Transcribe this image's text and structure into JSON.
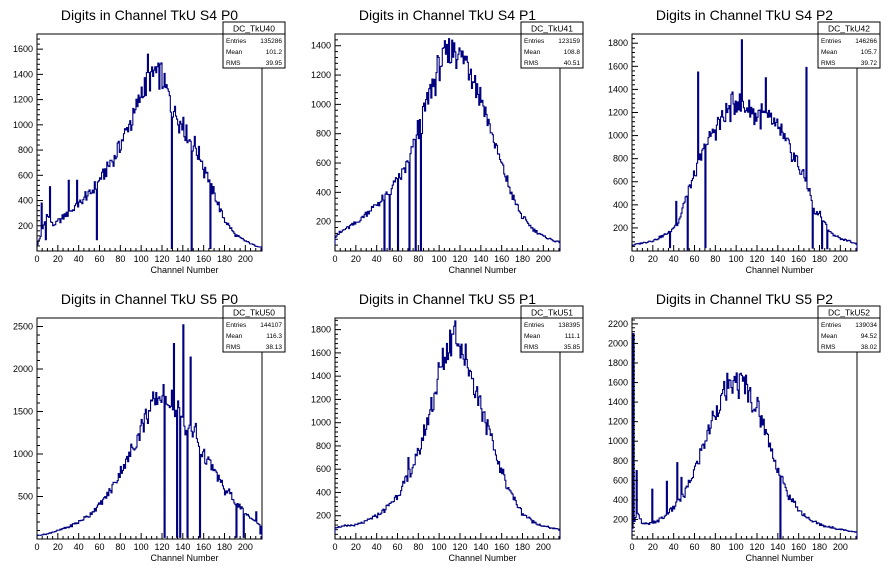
{
  "chart_data": [
    {
      "type": "bar",
      "title": "Digits in Channel TkU S4 P0",
      "xlabel": "Channel Number",
      "ylabel": "",
      "xlim": [
        0,
        216
      ],
      "ylim": [
        0,
        1720
      ],
      "xticks": [
        0,
        20,
        40,
        60,
        80,
        100,
        120,
        140,
        160,
        180,
        200
      ],
      "yticks": [
        200,
        400,
        600,
        800,
        1000,
        1200,
        1400,
        1600
      ],
      "color": "#000080",
      "stats": {
        "name": "DC_TkU40",
        "entries_label": "Entries",
        "entries": "135286",
        "mean_label": "Mean",
        "mean": "101.2",
        "rms_label": "RMS",
        "rms": "39.95"
      },
      "knots": [
        [
          0,
          40
        ],
        [
          5,
          150
        ],
        [
          10,
          300
        ],
        [
          15,
          200
        ],
        [
          20,
          230
        ],
        [
          30,
          300
        ],
        [
          40,
          370
        ],
        [
          50,
          440
        ],
        [
          60,
          560
        ],
        [
          70,
          680
        ],
        [
          80,
          840
        ],
        [
          90,
          1020
        ],
        [
          100,
          1250
        ],
        [
          110,
          1400
        ],
        [
          120,
          1380
        ],
        [
          130,
          1120
        ],
        [
          140,
          1000
        ],
        [
          150,
          850
        ],
        [
          160,
          700
        ],
        [
          170,
          450
        ],
        [
          180,
          250
        ],
        [
          190,
          130
        ],
        [
          200,
          80
        ],
        [
          210,
          40
        ],
        [
          216,
          30
        ]
      ],
      "spikes": [
        [
          4,
          380
        ],
        [
          8,
          90
        ],
        [
          12,
          510
        ],
        [
          30,
          560
        ],
        [
          38,
          560
        ],
        [
          46,
          470
        ],
        [
          57,
          90
        ],
        [
          106,
          1560
        ],
        [
          113,
          1460
        ],
        [
          129,
          20
        ],
        [
          140,
          1060
        ],
        [
          148,
          5
        ],
        [
          160,
          580
        ],
        [
          166,
          20
        ]
      ]
    },
    {
      "type": "bar",
      "title": "Digits in Channel TkU S4 P1",
      "xlabel": "Channel Number",
      "ylabel": "",
      "xlim": [
        0,
        216
      ],
      "ylim": [
        0,
        1480
      ],
      "xticks": [
        0,
        20,
        40,
        60,
        80,
        100,
        120,
        140,
        160,
        180,
        200
      ],
      "yticks": [
        200,
        400,
        600,
        800,
        1000,
        1200,
        1400
      ],
      "color": "#000080",
      "stats": {
        "name": "DC_TkU41",
        "entries_label": "Entries",
        "entries": "123159",
        "mean_label": "Mean",
        "mean": "108.8",
        "rms_label": "RMS",
        "rms": "40.51"
      },
      "knots": [
        [
          0,
          100
        ],
        [
          10,
          150
        ],
        [
          20,
          190
        ],
        [
          30,
          250
        ],
        [
          40,
          320
        ],
        [
          50,
          380
        ],
        [
          60,
          480
        ],
        [
          70,
          600
        ],
        [
          80,
          800
        ],
        [
          90,
          1050
        ],
        [
          100,
          1250
        ],
        [
          110,
          1380
        ],
        [
          120,
          1350
        ],
        [
          130,
          1250
        ],
        [
          140,
          1050
        ],
        [
          150,
          820
        ],
        [
          160,
          580
        ],
        [
          170,
          380
        ],
        [
          180,
          230
        ],
        [
          190,
          150
        ],
        [
          200,
          100
        ],
        [
          210,
          70
        ],
        [
          216,
          60
        ]
      ],
      "spikes": [
        [
          47,
          2
        ],
        [
          52,
          10
        ],
        [
          55,
          450
        ],
        [
          58,
          500
        ],
        [
          60,
          2
        ],
        [
          64,
          560
        ],
        [
          68,
          610
        ],
        [
          71,
          2
        ],
        [
          74,
          710
        ],
        [
          77,
          5
        ],
        [
          79,
          890
        ],
        [
          82,
          2
        ],
        [
          114,
          1420
        ]
      ]
    },
    {
      "type": "bar",
      "title": "Digits in Channel TkU S4 P2",
      "xlabel": "Channel Number",
      "ylabel": "",
      "xlim": [
        0,
        216
      ],
      "ylim": [
        0,
        1880
      ],
      "xticks": [
        0,
        20,
        40,
        60,
        80,
        100,
        120,
        140,
        160,
        180,
        200
      ],
      "yticks": [
        200,
        400,
        600,
        800,
        1000,
        1200,
        1400,
        1600,
        1800
      ],
      "color": "#000080",
      "stats": {
        "name": "DC_TkU42",
        "entries_label": "Entries",
        "entries": "146266",
        "mean_label": "Mean",
        "mean": "105.7",
        "rms_label": "RMS",
        "rms": "39.72"
      },
      "knots": [
        [
          0,
          50
        ],
        [
          20,
          90
        ],
        [
          30,
          130
        ],
        [
          40,
          200
        ],
        [
          45,
          260
        ],
        [
          50,
          420
        ],
        [
          60,
          650
        ],
        [
          70,
          900
        ],
        [
          80,
          1050
        ],
        [
          90,
          1180
        ],
        [
          100,
          1300
        ],
        [
          110,
          1250
        ],
        [
          120,
          1180
        ],
        [
          130,
          1150
        ],
        [
          140,
          1050
        ],
        [
          150,
          900
        ],
        [
          160,
          750
        ],
        [
          170,
          550
        ],
        [
          175,
          320
        ],
        [
          180,
          330
        ],
        [
          185,
          250
        ],
        [
          190,
          160
        ],
        [
          200,
          110
        ],
        [
          210,
          80
        ],
        [
          216,
          60
        ]
      ],
      "spikes": [
        [
          36,
          30
        ],
        [
          42,
          430
        ],
        [
          53,
          10
        ],
        [
          63,
          1550
        ],
        [
          70,
          30
        ],
        [
          105,
          1830
        ],
        [
          128,
          1500
        ],
        [
          143,
          1100
        ],
        [
          167,
          1590
        ],
        [
          173,
          25
        ],
        [
          182,
          20
        ],
        [
          187,
          20
        ]
      ]
    },
    {
      "type": "bar",
      "title": "Digits in Channel TkU S5 P0",
      "xlabel": "Channel Number",
      "ylabel": "",
      "xlim": [
        0,
        216
      ],
      "ylim": [
        0,
        2600
      ],
      "xticks": [
        0,
        20,
        40,
        60,
        80,
        100,
        120,
        140,
        160,
        180,
        200
      ],
      "yticks": [
        500,
        1000,
        1500,
        2000,
        2500
      ],
      "color": "#000080",
      "stats": {
        "name": "DC_TkU50",
        "entries_label": "Entries",
        "entries": "144107",
        "mean_label": "Mean",
        "mean": "116.3",
        "rms_label": "RMS",
        "rms": "38.13"
      },
      "knots": [
        [
          0,
          40
        ],
        [
          10,
          60
        ],
        [
          20,
          100
        ],
        [
          30,
          140
        ],
        [
          40,
          200
        ],
        [
          50,
          280
        ],
        [
          60,
          400
        ],
        [
          70,
          560
        ],
        [
          80,
          780
        ],
        [
          90,
          1020
        ],
        [
          100,
          1300
        ],
        [
          110,
          1560
        ],
        [
          120,
          1700
        ],
        [
          130,
          1600
        ],
        [
          140,
          1400
        ],
        [
          150,
          1250
        ],
        [
          160,
          1000
        ],
        [
          170,
          800
        ],
        [
          180,
          600
        ],
        [
          190,
          450
        ],
        [
          200,
          300
        ],
        [
          210,
          200
        ],
        [
          216,
          150
        ]
      ],
      "spikes": [
        [
          122,
          20
        ],
        [
          131,
          2300
        ],
        [
          134,
          20
        ],
        [
          137,
          20
        ],
        [
          140,
          2520
        ],
        [
          144,
          20
        ],
        [
          147,
          2140
        ],
        [
          152,
          1360
        ],
        [
          156,
          20
        ],
        [
          180,
          520
        ],
        [
          191,
          20
        ],
        [
          198,
          20
        ],
        [
          210,
          320
        ],
        [
          214,
          60
        ]
      ]
    },
    {
      "type": "bar",
      "title": "Digits in Channel TkU S5 P1",
      "xlabel": "Channel Number",
      "ylabel": "",
      "xlim": [
        0,
        216
      ],
      "ylim": [
        0,
        1900
      ],
      "xticks": [
        0,
        20,
        40,
        60,
        80,
        100,
        120,
        140,
        160,
        180,
        200
      ],
      "yticks": [
        200,
        400,
        600,
        800,
        1000,
        1200,
        1400,
        1600,
        1800
      ],
      "color": "#000080",
      "stats": {
        "name": "DC_TkU51",
        "entries_label": "Entries",
        "entries": "138395",
        "mean_label": "Mean",
        "mean": "111.1",
        "rms_label": "RMS",
        "rms": "35.85"
      },
      "knots": [
        [
          0,
          100
        ],
        [
          10,
          110
        ],
        [
          20,
          120
        ],
        [
          30,
          150
        ],
        [
          40,
          200
        ],
        [
          50,
          270
        ],
        [
          60,
          380
        ],
        [
          70,
          520
        ],
        [
          80,
          720
        ],
        [
          90,
          1050
        ],
        [
          100,
          1420
        ],
        [
          110,
          1700
        ],
        [
          115,
          1760
        ],
        [
          120,
          1650
        ],
        [
          130,
          1450
        ],
        [
          140,
          1150
        ],
        [
          150,
          850
        ],
        [
          160,
          580
        ],
        [
          170,
          380
        ],
        [
          180,
          220
        ],
        [
          190,
          150
        ],
        [
          200,
          110
        ],
        [
          210,
          90
        ],
        [
          216,
          80
        ]
      ],
      "spikes": [
        [
          114,
          1830
        ],
        [
          70,
          700
        ]
      ]
    },
    {
      "type": "bar",
      "title": "Digits in Channel TkU S5 P2",
      "xlabel": "Channel Number",
      "ylabel": "",
      "xlim": [
        0,
        216
      ],
      "ylim": [
        0,
        2260
      ],
      "xticks": [
        0,
        20,
        40,
        60,
        80,
        100,
        120,
        140,
        160,
        180,
        200
      ],
      "yticks": [
        200,
        400,
        600,
        800,
        1000,
        1200,
        1400,
        1600,
        1800,
        2000,
        2200
      ],
      "color": "#000080",
      "stats": {
        "name": "DC_TkU52",
        "entries_label": "Entries",
        "entries": "139034",
        "mean_label": "Mean",
        "mean": "94.52",
        "rms_label": "RMS",
        "rms": "38.02"
      },
      "knots": [
        [
          0,
          80
        ],
        [
          5,
          300
        ],
        [
          10,
          150
        ],
        [
          20,
          160
        ],
        [
          30,
          220
        ],
        [
          40,
          320
        ],
        [
          50,
          450
        ],
        [
          60,
          700
        ],
        [
          70,
          1000
        ],
        [
          80,
          1300
        ],
        [
          90,
          1520
        ],
        [
          100,
          1600
        ],
        [
          110,
          1550
        ],
        [
          120,
          1350
        ],
        [
          130,
          1050
        ],
        [
          140,
          720
        ],
        [
          150,
          450
        ],
        [
          160,
          300
        ],
        [
          170,
          200
        ],
        [
          180,
          150
        ],
        [
          190,
          120
        ],
        [
          200,
          100
        ],
        [
          210,
          80
        ],
        [
          216,
          70
        ]
      ],
      "spikes": [
        [
          1,
          2100
        ],
        [
          4,
          700
        ],
        [
          19,
          510
        ],
        [
          33,
          590
        ],
        [
          43,
          780
        ],
        [
          47,
          630
        ],
        [
          142,
          10
        ]
      ]
    }
  ]
}
